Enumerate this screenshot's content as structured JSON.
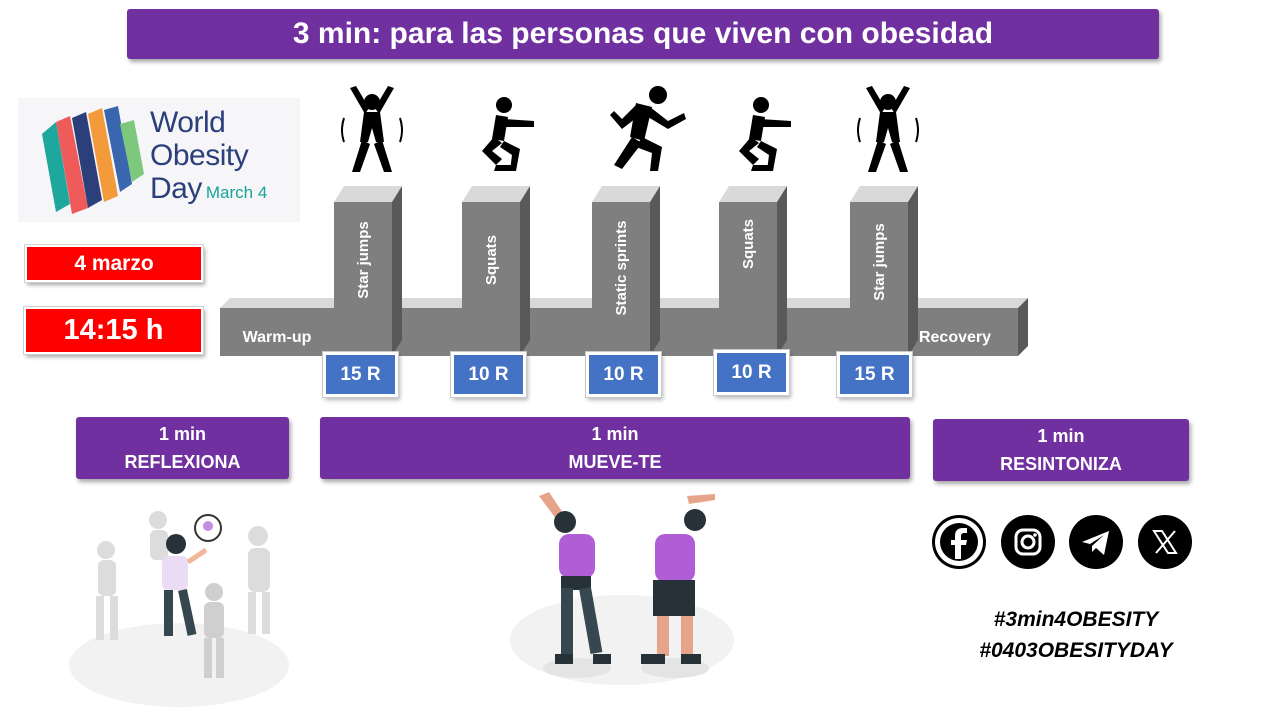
{
  "title": "3 min: para las personas que viven con obesidad",
  "logo": {
    "line1": "World",
    "line2": "Obesity",
    "line3": "Day",
    "date": "March 4"
  },
  "event": {
    "date": "4 marzo",
    "time": "14:15 h"
  },
  "exercises": {
    "warmup": "Warm-up",
    "recovery": "Recovery",
    "steps": [
      {
        "label": "Star jumps",
        "reps": "15 R",
        "icon": "star-jump-icon"
      },
      {
        "label": "Squats",
        "reps": "10 R",
        "icon": "squat-icon"
      },
      {
        "label": "Static sprints",
        "reps": "10 R",
        "icon": "sprint-icon"
      },
      {
        "label": "Squats",
        "reps": "10 R",
        "icon": "squat-icon"
      },
      {
        "label": "Star jumps",
        "reps": "15 R",
        "icon": "star-jump-icon"
      }
    ]
  },
  "phases": [
    {
      "time": "1 min",
      "label": "REFLEXIONA"
    },
    {
      "time": "1 min",
      "label": "MUEVE-TE"
    },
    {
      "time": "1 min",
      "label": "RESINTONIZA"
    }
  ],
  "social": [
    "facebook-icon",
    "instagram-icon",
    "telegram-icon",
    "x-icon"
  ],
  "hashtags": [
    "#3min4OBESITY",
    "#0403OBESITYDAY"
  ],
  "colors": {
    "purple": "#7030a0",
    "red": "#ff0000",
    "blue": "#4472c4",
    "block": "#7f7f7f"
  }
}
